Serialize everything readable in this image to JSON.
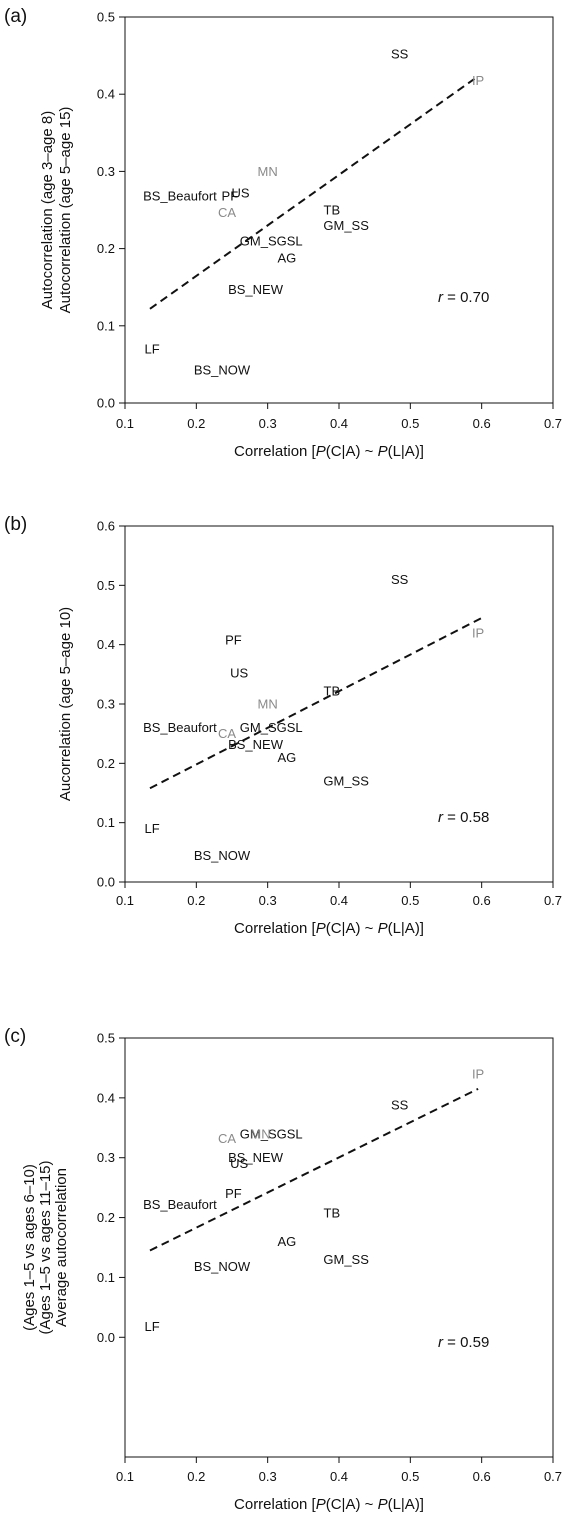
{
  "colors": {
    "black": "#111111",
    "gray": "#8a8a8a",
    "trend": "#111111"
  },
  "chart_data": [
    {
      "panel": "(a)",
      "type": "scatter",
      "xlabel": {
        "pre": "Correlation  [",
        "p1": "P",
        "m1": "(C|A) ~ ",
        "p2": "P",
        "m2": "(L|A)]"
      },
      "ylabel_lines": [
        "Autocorrelation (age 3–age 8)",
        "Autocorrelation (age 5–age 15)"
      ],
      "xlim": [
        0.1,
        0.7
      ],
      "ylim": [
        0.0,
        0.5
      ],
      "xticks": [
        "0.1",
        "0.2",
        "0.3",
        "0.4",
        "0.5",
        "0.6",
        "0.7"
      ],
      "yticks": [
        "0.0",
        "0.1",
        "0.2",
        "0.3",
        "0.4",
        "0.5"
      ],
      "r_label": {
        "r": "r",
        "rest": " = 0.70"
      },
      "trend": {
        "x": [
          0.135,
          0.59
        ],
        "y": [
          0.122,
          0.42
        ]
      },
      "points": [
        {
          "label": "SS",
          "x": 0.485,
          "y": 0.452,
          "color": "black"
        },
        {
          "label": "IP",
          "x": 0.595,
          "y": 0.418,
          "color": "gray"
        },
        {
          "label": "MN",
          "x": 0.3,
          "y": 0.3,
          "color": "gray"
        },
        {
          "label": "US",
          "x": 0.262,
          "y": 0.272,
          "color": "black"
        },
        {
          "label": "PF",
          "x": 0.247,
          "y": 0.268,
          "color": "black"
        },
        {
          "label": "BS_Beaufort",
          "x": 0.177,
          "y": 0.268,
          "color": "black"
        },
        {
          "label": "CA",
          "x": 0.243,
          "y": 0.247,
          "color": "gray"
        },
        {
          "label": "TB",
          "x": 0.39,
          "y": 0.25,
          "color": "black"
        },
        {
          "label": "GM_SS",
          "x": 0.41,
          "y": 0.23,
          "color": "black"
        },
        {
          "label": "GM_SGSL",
          "x": 0.305,
          "y": 0.21,
          "color": "black"
        },
        {
          "label": "AG",
          "x": 0.327,
          "y": 0.188,
          "color": "black"
        },
        {
          "label": "BS_NEW",
          "x": 0.283,
          "y": 0.147,
          "color": "black"
        },
        {
          "label": "LF",
          "x": 0.138,
          "y": 0.07,
          "color": "black"
        },
        {
          "label": "BS_NOW",
          "x": 0.236,
          "y": 0.043,
          "color": "black"
        }
      ]
    },
    {
      "panel": "(b)",
      "type": "scatter",
      "xlabel": {
        "pre": "Correlation  [",
        "p1": "P",
        "m1": "(C|A) ~ ",
        "p2": "P",
        "m2": "(L|A)]"
      },
      "ylabel_lines": [
        "Aucorrelation (age 5–age 10)"
      ],
      "xlim": [
        0.1,
        0.7
      ],
      "ylim": [
        0.0,
        0.6
      ],
      "xticks": [
        "0.1",
        "0.2",
        "0.3",
        "0.4",
        "0.5",
        "0.6",
        "0.7"
      ],
      "yticks": [
        "0.0",
        "0.1",
        "0.2",
        "0.3",
        "0.4",
        "0.5",
        "0.6"
      ],
      "r_label": {
        "r": "r",
        "rest": " = 0.58"
      },
      "trend": {
        "x": [
          0.135,
          0.6
        ],
        "y": [
          0.158,
          0.445
        ]
      },
      "points": [
        {
          "label": "SS",
          "x": 0.485,
          "y": 0.51,
          "color": "black"
        },
        {
          "label": "PF",
          "x": 0.252,
          "y": 0.408,
          "color": "black"
        },
        {
          "label": "IP",
          "x": 0.595,
          "y": 0.42,
          "color": "gray"
        },
        {
          "label": "US",
          "x": 0.26,
          "y": 0.352,
          "color": "black"
        },
        {
          "label": "MN",
          "x": 0.3,
          "y": 0.3,
          "color": "gray"
        },
        {
          "label": "TB",
          "x": 0.39,
          "y": 0.322,
          "color": "black"
        },
        {
          "label": "BS_Beaufort",
          "x": 0.177,
          "y": 0.26,
          "color": "black"
        },
        {
          "label": "GM_SGSL",
          "x": 0.305,
          "y": 0.26,
          "color": "black"
        },
        {
          "label": "CA",
          "x": 0.243,
          "y": 0.25,
          "color": "gray"
        },
        {
          "label": "BS_NEW",
          "x": 0.283,
          "y": 0.232,
          "color": "black"
        },
        {
          "label": "AG",
          "x": 0.327,
          "y": 0.21,
          "color": "black"
        },
        {
          "label": "GM_SS",
          "x": 0.41,
          "y": 0.17,
          "color": "black"
        },
        {
          "label": "LF",
          "x": 0.138,
          "y": 0.09,
          "color": "black"
        },
        {
          "label": "BS_NOW",
          "x": 0.236,
          "y": 0.045,
          "color": "black"
        }
      ]
    },
    {
      "panel": "(c)",
      "type": "scatter",
      "xlabel": {
        "pre": "Correlation  [",
        "p1": "P",
        "m1": "(C|A) ~ ",
        "p2": "P",
        "m2": "(L|A)]"
      },
      "ylabel_lines": [
        "(Ages 1–5 vs ages 6–10)",
        "(Ages 1–5 vs ages 11–15)",
        "Average autocorrelation"
      ],
      "xlim": [
        0.1,
        0.7
      ],
      "ylim": [
        -0.2,
        0.5
      ],
      "xticks": [
        "0.1",
        "0.2",
        "0.3",
        "0.4",
        "0.5",
        "0.6",
        "0.7"
      ],
      "yticks": [
        "0.0",
        "0.1",
        "0.2",
        "0.3",
        "0.4",
        "0.5"
      ],
      "r_label": {
        "r": "r",
        "rest": " = 0.59"
      },
      "trend": {
        "x": [
          0.135,
          0.595
        ],
        "y": [
          0.145,
          0.415
        ]
      },
      "points": [
        {
          "label": "IP",
          "x": 0.595,
          "y": 0.44,
          "color": "gray"
        },
        {
          "label": "SS",
          "x": 0.485,
          "y": 0.388,
          "color": "black"
        },
        {
          "label": "GM_SGSL",
          "x": 0.305,
          "y": 0.34,
          "color": "black"
        },
        {
          "label": "MN",
          "x": 0.29,
          "y": 0.34,
          "color": "gray"
        },
        {
          "label": "CA",
          "x": 0.243,
          "y": 0.332,
          "color": "gray"
        },
        {
          "label": "BS_NEW",
          "x": 0.283,
          "y": 0.3,
          "color": "black"
        },
        {
          "label": "US",
          "x": 0.26,
          "y": 0.29,
          "color": "black"
        },
        {
          "label": "PF",
          "x": 0.252,
          "y": 0.24,
          "color": "black"
        },
        {
          "label": "BS_Beaufort",
          "x": 0.177,
          "y": 0.222,
          "color": "black"
        },
        {
          "label": "TB",
          "x": 0.39,
          "y": 0.208,
          "color": "black"
        },
        {
          "label": "AG",
          "x": 0.327,
          "y": 0.16,
          "color": "black"
        },
        {
          "label": "GM_SS",
          "x": 0.41,
          "y": 0.13,
          "color": "black"
        },
        {
          "label": "BS_NOW",
          "x": 0.236,
          "y": 0.118,
          "color": "black"
        },
        {
          "label": "LF",
          "x": 0.138,
          "y": 0.018,
          "color": "black"
        }
      ]
    }
  ]
}
